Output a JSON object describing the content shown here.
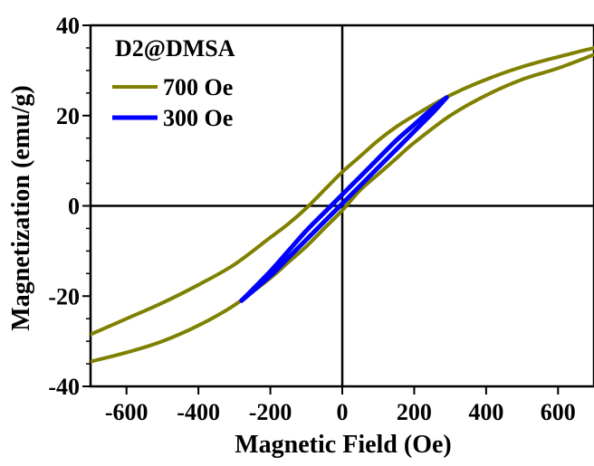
{
  "chart_data": {
    "type": "line",
    "title": "",
    "xlabel": "Magnetic Field (Oe)",
    "ylabel": "Magnetization (emu/g)",
    "xlim": [
      -700,
      700
    ],
    "ylim": [
      -40,
      40
    ],
    "xticks": [
      -600,
      -400,
      -200,
      0,
      200,
      400,
      600
    ],
    "xtick_labels": [
      "-600",
      "-400",
      "-200",
      "0",
      "200",
      "400",
      "600"
    ],
    "yticks": [
      -40,
      -20,
      0,
      20,
      40
    ],
    "ytick_labels": [
      "-40",
      "-20",
      "0",
      "20",
      "40"
    ],
    "grid": false,
    "zero_lines": true,
    "legend": {
      "title": "D2@DMSA",
      "placement": "top-left"
    },
    "series": [
      {
        "name": "700 Oe",
        "color": "#808000",
        "branch_upper_x": [
          -700,
          -600,
          -500,
          -400,
          -300,
          -200,
          -150,
          -100,
          -50,
          0,
          50,
          100,
          150,
          200,
          300,
          400,
          500,
          600,
          700
        ],
        "branch_upper_y": [
          -28.5,
          -25.0,
          -21.5,
          -17.5,
          -13.0,
          -7.0,
          -4.0,
          -0.5,
          3.5,
          7.5,
          11.0,
          14.5,
          17.5,
          20.0,
          24.5,
          28.0,
          30.8,
          33.0,
          35.0
        ],
        "branch_lower_x": [
          -700,
          -600,
          -500,
          -400,
          -300,
          -200,
          -150,
          -100,
          -50,
          0,
          50,
          100,
          150,
          200,
          300,
          400,
          500,
          600,
          700
        ],
        "branch_lower_y": [
          -34.5,
          -32.5,
          -30.0,
          -26.5,
          -22.0,
          -16.0,
          -12.5,
          -9.0,
          -5.0,
          -1.0,
          3.5,
          7.0,
          10.5,
          14.0,
          20.0,
          24.5,
          28.0,
          30.5,
          33.5
        ]
      },
      {
        "name": "300 Oe",
        "color": "#0000ff",
        "branch_upper_x": [
          -280,
          -200,
          -150,
          -100,
          -50,
          0,
          50,
          100,
          150,
          200,
          250,
          290
        ],
        "branch_upper_y": [
          -21.0,
          -14.5,
          -10.0,
          -5.5,
          -1.5,
          2.5,
          6.5,
          10.5,
          14.5,
          18.0,
          21.5,
          24.0
        ],
        "branch_lower_x": [
          -280,
          -200,
          -150,
          -100,
          -50,
          0,
          50,
          100,
          150,
          200,
          250,
          290
        ],
        "branch_lower_y": [
          -21.0,
          -15.5,
          -11.5,
          -7.5,
          -3.5,
          0.5,
          4.5,
          8.5,
          12.5,
          16.5,
          20.5,
          24.0
        ]
      }
    ]
  }
}
